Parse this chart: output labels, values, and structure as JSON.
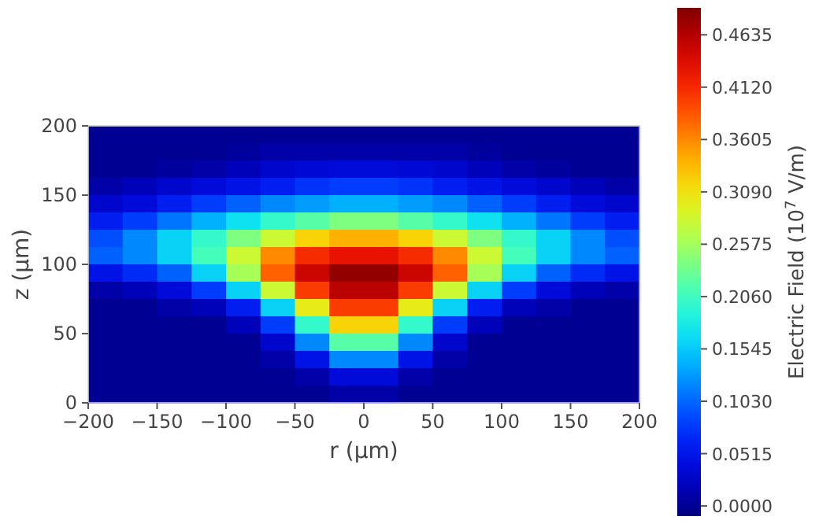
{
  "chart_data": {
    "type": "heatmap",
    "xlabel": "r (μm)",
    "ylabel": "z (μm)",
    "clabel": "Electric Field (10$^{7}$ V/m)",
    "x": [
      -187.5,
      -162.5,
      -137.5,
      -112.5,
      -87.5,
      -62.5,
      -37.5,
      -12.5,
      12.5,
      37.5,
      62.5,
      87.5,
      112.5,
      137.5,
      162.5,
      187.5
    ],
    "y": [
      193.75,
      181.25,
      168.75,
      156.25,
      143.75,
      131.25,
      118.75,
      106.25,
      93.75,
      81.25,
      68.75,
      56.25,
      43.75,
      31.25,
      18.75,
      6.25
    ],
    "xlim": [
      -200,
      200
    ],
    "xticks": [
      {
        "value": -200,
        "label": "−200"
      },
      {
        "value": -150,
        "label": "−150"
      },
      {
        "value": -100,
        "label": "−100"
      },
      {
        "value": -50,
        "label": "−50"
      },
      0,
      50,
      100,
      150,
      200
    ],
    "ylim": [
      0,
      200
    ],
    "yticks": [
      0,
      50,
      100,
      150,
      200
    ],
    "clim": [
      -0.01,
      0.49
    ],
    "cticks": [
      {
        "value": 0,
        "label": "0.0000"
      },
      0.0515,
      {
        "value": 0.103,
        "label": "0.1030"
      },
      0.1545,
      {
        "value": 0.206,
        "label": "0.2060"
      },
      0.2575,
      {
        "value": 0.309,
        "label": "0.3090"
      },
      0.3605,
      {
        "value": 0.412,
        "label": "0.4120"
      },
      0.4635
    ],
    "cells": [
      [
        0,
        0,
        0,
        0,
        0,
        0,
        0,
        0,
        0,
        0,
        0,
        0,
        0,
        0,
        0,
        0
      ],
      [
        0,
        0,
        0,
        0,
        0.005,
        0.01,
        0.01,
        0.01,
        0.01,
        0.01,
        0.01,
        0.005,
        0,
        0,
        0,
        0
      ],
      [
        0,
        0,
        0.005,
        0.01,
        0.02,
        0.03,
        0.035,
        0.04,
        0.04,
        0.035,
        0.03,
        0.02,
        0.01,
        0.005,
        0,
        0
      ],
      [
        0.01,
        0.02,
        0.03,
        0.04,
        0.05,
        0.06,
        0.075,
        0.08,
        0.08,
        0.075,
        0.06,
        0.05,
        0.04,
        0.03,
        0.02,
        0.01
      ],
      [
        0.03,
        0.04,
        0.06,
        0.08,
        0.1,
        0.12,
        0.13,
        0.14,
        0.14,
        0.13,
        0.12,
        0.1,
        0.08,
        0.06,
        0.04,
        0.03
      ],
      [
        0.06,
        0.08,
        0.11,
        0.14,
        0.17,
        0.2,
        0.22,
        0.24,
        0.24,
        0.22,
        0.2,
        0.17,
        0.14,
        0.11,
        0.08,
        0.06
      ],
      [
        0.09,
        0.12,
        0.16,
        0.2,
        0.24,
        0.28,
        0.32,
        0.34,
        0.34,
        0.32,
        0.28,
        0.24,
        0.2,
        0.16,
        0.12,
        0.09
      ],
      [
        0.1,
        0.12,
        0.16,
        0.21,
        0.28,
        0.36,
        0.41,
        0.43,
        0.43,
        0.41,
        0.36,
        0.28,
        0.21,
        0.16,
        0.12,
        0.1
      ],
      [
        0.05,
        0.07,
        0.1,
        0.16,
        0.26,
        0.38,
        0.45,
        0.48,
        0.48,
        0.45,
        0.38,
        0.26,
        0.16,
        0.1,
        0.07,
        0.05
      ],
      [
        0.01,
        0.02,
        0.04,
        0.08,
        0.16,
        0.28,
        0.4,
        0.46,
        0.46,
        0.4,
        0.28,
        0.16,
        0.08,
        0.04,
        0.02,
        0.01
      ],
      [
        0,
        0,
        0.01,
        0.02,
        0.06,
        0.16,
        0.3,
        0.4,
        0.4,
        0.3,
        0.16,
        0.06,
        0.02,
        0.01,
        0,
        0
      ],
      [
        0,
        0,
        0,
        0,
        0.02,
        0.08,
        0.2,
        0.32,
        0.32,
        0.2,
        0.08,
        0.02,
        0,
        0,
        0,
        0
      ],
      [
        0,
        0,
        0,
        0,
        0,
        0.03,
        0.12,
        0.22,
        0.22,
        0.12,
        0.03,
        0,
        0,
        0,
        0,
        0
      ],
      [
        0,
        0,
        0,
        0,
        0,
        0.01,
        0.05,
        0.12,
        0.12,
        0.05,
        0.01,
        0,
        0,
        0,
        0,
        0
      ],
      [
        0,
        0,
        0,
        0,
        0,
        0,
        0.01,
        0.04,
        0.04,
        0.01,
        0,
        0,
        0,
        0,
        0,
        0
      ],
      [
        0,
        0,
        0,
        0,
        0,
        0,
        0,
        0.01,
        0.01,
        0,
        0,
        0,
        0,
        0,
        0,
        0
      ]
    ]
  }
}
